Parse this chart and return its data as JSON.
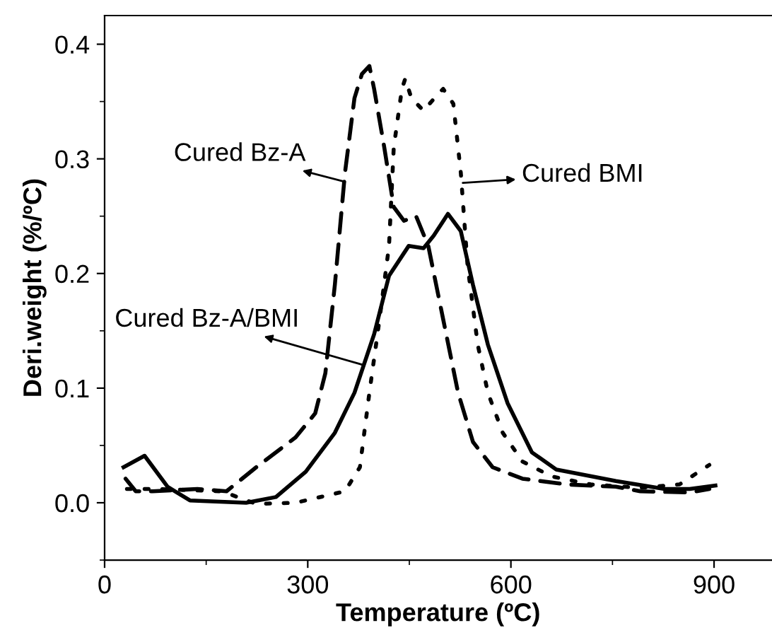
{
  "chart_data": {
    "type": "line",
    "xlabel": "Temperature (ºC)",
    "ylabel": "Deri.weight (%/ºC)",
    "xlim": [
      0,
      985
    ],
    "ylim": [
      -0.05,
      0.425
    ],
    "xticks": [
      0,
      {
        "value": 150,
        "label": null
      },
      300,
      {
        "value": 450,
        "label": null
      },
      600,
      {
        "value": 750,
        "label": null
      },
      900
    ],
    "yticks": [
      {
        "value": -0.05,
        "label": null
      },
      {
        "value": 0,
        "label": "0.0"
      },
      {
        "value": 0.05,
        "label": null
      },
      0.1,
      {
        "value": 0.15,
        "label": null
      },
      0.2,
      {
        "value": 0.25,
        "label": null
      },
      0.3,
      {
        "value": 0.35,
        "label": null
      },
      0.4
    ],
    "grid": false,
    "legend": false,
    "series": [
      {
        "color": "#000000",
        "line_style": "dashed",
        "x": [
          31,
          46,
          71,
          137,
          180,
          224,
          282,
          311,
          326,
          340,
          355,
          369,
          380,
          391,
          398,
          413,
          427,
          442,
          460,
          478,
          500,
          522,
          544,
          573,
          617,
          682,
          755,
          791,
          864,
          893
        ],
        "values": [
          0.021,
          0.01,
          0.01,
          0.012,
          0.01,
          0.031,
          0.057,
          0.078,
          0.113,
          0.19,
          0.288,
          0.353,
          0.374,
          0.381,
          0.361,
          0.31,
          0.258,
          0.246,
          0.25,
          0.224,
          0.16,
          0.096,
          0.053,
          0.031,
          0.021,
          0.016,
          0.014,
          0.01,
          0.009,
          0.012
        ]
      },
      {
        "color": "#000000",
        "line_style": "dotted",
        "x": [
          33,
          79,
          173,
          224,
          282,
          355,
          377,
          391,
          406,
          420,
          427,
          439,
          444,
          453,
          471,
          493,
          500,
          515,
          526,
          536,
          551,
          566,
          588,
          617,
          660,
          718,
          791,
          849,
          893
        ],
        "values": [
          0.012,
          0.012,
          0.01,
          -0.001,
          0.0,
          0.01,
          0.031,
          0.096,
          0.16,
          0.224,
          0.31,
          0.361,
          0.37,
          0.353,
          0.342,
          0.357,
          0.361,
          0.348,
          0.288,
          0.207,
          0.138,
          0.096,
          0.061,
          0.036,
          0.023,
          0.016,
          0.013,
          0.016,
          0.033
        ]
      },
      {
        "color": "#000000",
        "line_style": "solid",
        "x": [
          28,
          59,
          93,
          126,
          209,
          253,
          297,
          340,
          369,
          398,
          420,
          449,
          471,
          486,
          507,
          526,
          544,
          566,
          595,
          631,
          667,
          755,
          827,
          864,
          902
        ],
        "values": [
          0.031,
          0.041,
          0.014,
          0.002,
          0.0,
          0.005,
          0.027,
          0.061,
          0.096,
          0.147,
          0.198,
          0.224,
          0.222,
          0.233,
          0.252,
          0.237,
          0.19,
          0.138,
          0.087,
          0.044,
          0.029,
          0.019,
          0.012,
          0.012,
          0.015
        ]
      }
    ],
    "annotations": [
      {
        "text": "Cured Bz-A",
        "x": 355,
        "y": 0.28
      },
      {
        "text": "Cured BMI",
        "x": 529,
        "y": 0.279
      },
      {
        "text": "Cured Bz-A/BMI",
        "x": 383,
        "y": 0.12
      }
    ]
  }
}
